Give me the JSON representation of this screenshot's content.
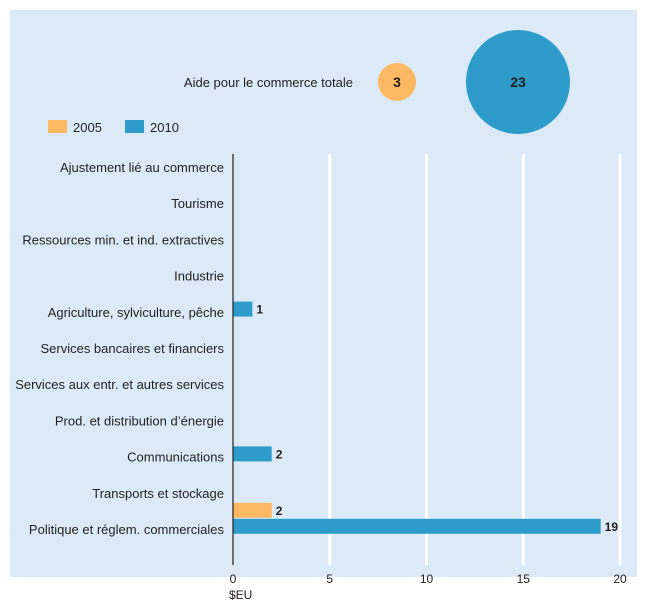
{
  "colors": {
    "background": "#dbeaf6",
    "c2005": "#fdb863",
    "c2010": "#2d9cca",
    "axis": "#231f20",
    "grid": "#ffffff"
  },
  "summary": {
    "label": "Aide pour le commerce totale",
    "v2005": "3",
    "v2010": "23"
  },
  "chart_data": {
    "type": "bar",
    "orientation": "horizontal",
    "categories": [
      "Ajustement lié au commerce",
      "Tourisme",
      "Ressources min. et ind. extractives",
      "Industrie",
      "Agriculture, sylviculture, pêche",
      "Services bancaires et financiers",
      "Services aux entr. et autres services",
      "Prod. et distribution d’énergie",
      "Communications",
      "Transports et stockage",
      "Politique et réglem. commerciales"
    ],
    "series": [
      {
        "name": "2005",
        "values": [
          0,
          0,
          0,
          0,
          0,
          0,
          0,
          0,
          0,
          2,
          0
        ]
      },
      {
        "name": "2010",
        "values": [
          0,
          0,
          0,
          1,
          0,
          0,
          0,
          2,
          0,
          19,
          0
        ]
      }
    ],
    "data_labels": [
      {
        "series": "2005",
        "category": "Transports et stockage",
        "text": "2"
      },
      {
        "series": "2010",
        "category": "Industrie",
        "text": "1"
      },
      {
        "series": "2010",
        "category": "Prod. et distribution d’énergie",
        "text": "2"
      },
      {
        "series": "2010",
        "category": "Transports et stockage",
        "text": "19"
      }
    ],
    "xticks": [
      "0",
      "5",
      "10",
      "15",
      "20"
    ],
    "xlim": [
      0,
      20
    ],
    "xlabel": "$EU",
    "legend": {
      "position": "top-left",
      "entries": [
        "2005",
        "2010"
      ]
    },
    "grid": "vertical"
  }
}
